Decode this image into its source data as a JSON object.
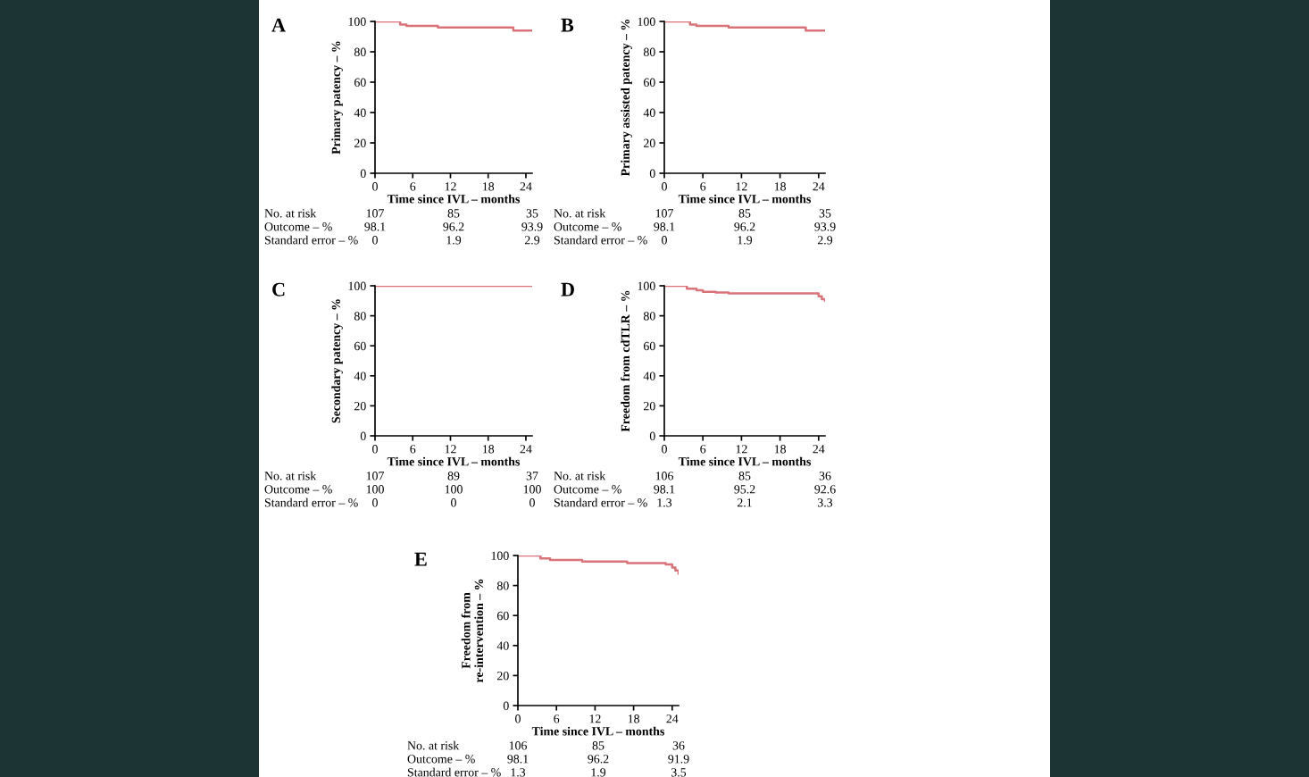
{
  "chart_data": [
    {
      "type": "step",
      "title": "A",
      "ylabel": "Primary patency – %",
      "xlabel": "Time since IVL – months",
      "xlim": [
        0,
        25
      ],
      "xticks": [
        0,
        6,
        12,
        18,
        24
      ],
      "ylim": [
        0,
        100
      ],
      "yticks": [
        0,
        20,
        40,
        60,
        80,
        100
      ],
      "grid": false,
      "legend": false,
      "series": [
        {
          "color": "#d9737a",
          "x": [
            0,
            4,
            5,
            10,
            22,
            25
          ],
          "values": [
            100,
            98,
            97,
            96,
            94,
            94
          ]
        }
      ],
      "annotations": [
        "No. at risk",
        "107",
        "85",
        "35",
        "Outcome – %",
        "98.1",
        "96.2",
        "93.9",
        "Standard error – %",
        "0",
        "1.9",
        "2.9"
      ]
    },
    {
      "type": "step",
      "title": "B",
      "ylabel": "Primary assisted patency – %",
      "xlabel": "Time since IVL – months",
      "xlim": [
        0,
        25
      ],
      "xticks": [
        0,
        6,
        12,
        18,
        24
      ],
      "ylim": [
        0,
        100
      ],
      "yticks": [
        0,
        20,
        40,
        60,
        80,
        100
      ],
      "grid": false,
      "legend": false,
      "series": [
        {
          "color": "#d9737a",
          "x": [
            0,
            4,
            5,
            10,
            22,
            25
          ],
          "values": [
            100,
            98,
            97,
            96,
            94,
            94
          ]
        }
      ],
      "annotations": [
        "No. at risk",
        "107",
        "85",
        "35",
        "Outcome – %",
        "98.1",
        "96.2",
        "93.9",
        "Standard error – %",
        "0",
        "1.9",
        "2.9"
      ]
    },
    {
      "type": "step",
      "title": "C",
      "ylabel": "Secondary patency – %",
      "xlabel": "Time since IVL – months",
      "xlim": [
        0,
        25
      ],
      "xticks": [
        0,
        6,
        12,
        18,
        24
      ],
      "ylim": [
        0,
        100
      ],
      "yticks": [
        0,
        20,
        40,
        60,
        80,
        100
      ],
      "grid": false,
      "legend": false,
      "series": [
        {
          "color": "#d9737a",
          "x": [
            0,
            25
          ],
          "values": [
            100,
            100
          ]
        }
      ],
      "annotations": [
        "No. at risk",
        "107",
        "89",
        "37",
        "Outcome – %",
        "100",
        "100",
        "100",
        "Standard error – %",
        "0",
        "0",
        "0"
      ]
    },
    {
      "type": "step",
      "title": "D",
      "ylabel": "Freedom from cdTLR – %",
      "xlabel": "Time since IVL – months",
      "xlim": [
        0,
        25
      ],
      "xticks": [
        0,
        6,
        12,
        18,
        24
      ],
      "ylim": [
        0,
        100
      ],
      "yticks": [
        0,
        20,
        40,
        60,
        80,
        100
      ],
      "grid": false,
      "legend": false,
      "series": [
        {
          "color": "#d9737a",
          "x": [
            0,
            3.5,
            5,
            6,
            8,
            10,
            24,
            24.5,
            25
          ],
          "values": [
            100,
            98,
            97,
            96,
            95.5,
            95,
            93,
            91,
            90
          ]
        }
      ],
      "annotations": [
        "No. at risk",
        "106",
        "85",
        "36",
        "Outcome – %",
        "98.1",
        "95.2",
        "92.6",
        "Standard error – %",
        "1.3",
        "2.1",
        "3.3"
      ]
    },
    {
      "type": "step",
      "title": "E",
      "ylabel": "Freedom from\nre-intervention – %",
      "xlabel": "Time since IVL – months",
      "xlim": [
        0,
        25
      ],
      "xticks": [
        0,
        6,
        12,
        18,
        24
      ],
      "ylim": [
        0,
        100
      ],
      "yticks": [
        0,
        20,
        40,
        60,
        80,
        100
      ],
      "grid": false,
      "legend": false,
      "series": [
        {
          "color": "#d9737a",
          "x": [
            0,
            3.5,
            5,
            10,
            17,
            23,
            24,
            24.5,
            25
          ],
          "values": [
            100,
            98,
            97,
            96,
            95,
            94,
            92,
            90,
            88
          ]
        }
      ],
      "annotations": [
        "No. at risk",
        "106",
        "85",
        "36",
        "Outcome – %",
        "98.1",
        "96.2",
        "91.9",
        "Standard error – %",
        "1.3",
        "1.9",
        "3.5"
      ]
    }
  ]
}
